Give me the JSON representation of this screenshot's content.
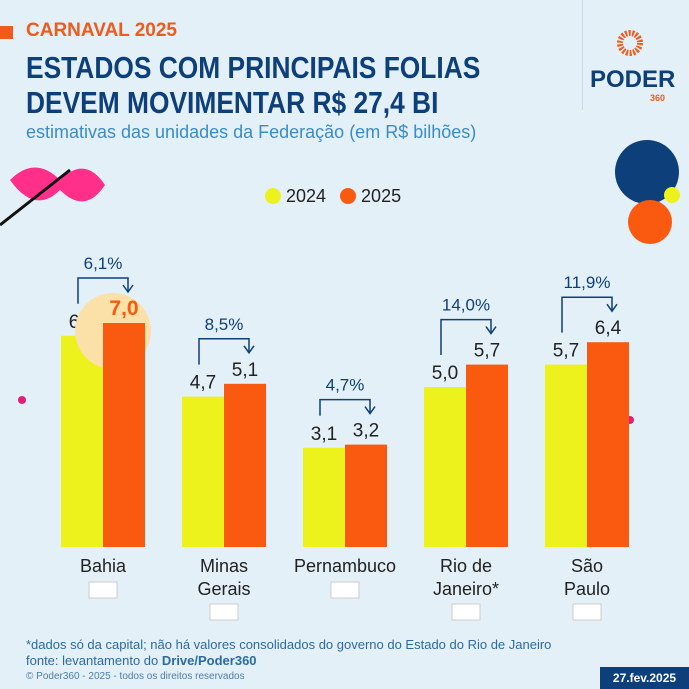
{
  "header": {
    "tag": "CARNAVAL 2025",
    "title": "ESTADOS COM PRINCIPAIS FOLIAS DEVEM MOVIMENTAR R$ 27,4 BI",
    "subtitle": "estimativas das unidades da Federação (em R$ bilhões)"
  },
  "logo": {
    "name": "PODER",
    "suffix": "360"
  },
  "chart_data": {
    "type": "bar",
    "categories": [
      "Bahia",
      "Minas Gerais",
      "Pernambuco",
      "Rio de Janeiro*",
      "São Paulo"
    ],
    "series": [
      {
        "name": "2024",
        "values": [
          6.6,
          4.7,
          3.1,
          5.0,
          5.7
        ],
        "labels": [
          "6,6",
          "4,7",
          "3,1",
          "5,0",
          "5,7"
        ],
        "color": "#eef21c"
      },
      {
        "name": "2025",
        "values": [
          7.0,
          5.1,
          3.2,
          5.7,
          6.4
        ],
        "labels": [
          "7,0",
          "5,1",
          "3,2",
          "5,7",
          "6,4"
        ],
        "color": "#fa5a0f"
      }
    ],
    "growth": [
      "6,1%",
      "8,5%",
      "4,7%",
      "14,0%",
      "11,9%"
    ],
    "highlight": "Bahia",
    "ylim": [
      0,
      7.5
    ]
  },
  "footer": {
    "note": "*dados só da capital; não há valores consolidados do governo do Estado do Rio de Janeiro",
    "source": "fonte: levantamento do ",
    "source_bold": "Drive/Poder360",
    "copyright": "© Poder360 - 2025 - todos os direitos reservados",
    "date": "27.fev.2025"
  }
}
